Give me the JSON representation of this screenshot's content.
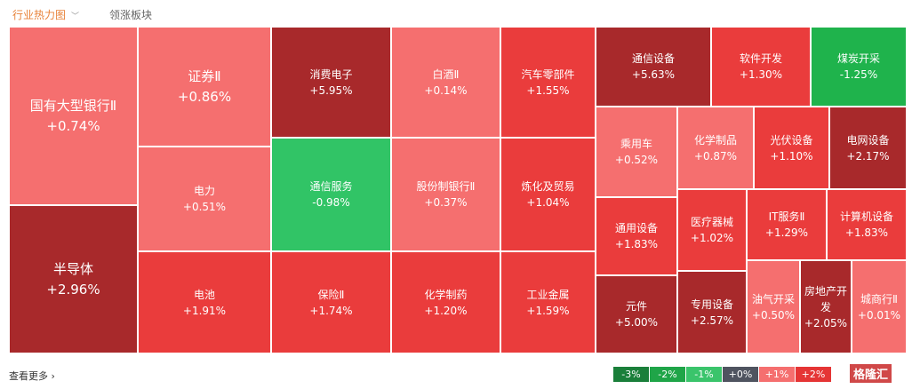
{
  "tabs": [
    {
      "label": "行业热力图",
      "active": true
    },
    {
      "label": "领涨板块",
      "active": false
    }
  ],
  "colors": {
    "light": "#f56f6f",
    "mid": "#ea3c3c",
    "dark": "#a8292b",
    "green": "#31c466",
    "green2": "#1fb34c"
  },
  "tiles": [
    {
      "name": "国有大型银行Ⅱ",
      "value": "+0.74%",
      "c": "light",
      "big": true
    },
    {
      "name": "半导体",
      "value": "+2.96%",
      "c": "dark",
      "big": true
    },
    {
      "name": "证券Ⅱ",
      "value": "+0.86%",
      "c": "light",
      "big": true
    },
    {
      "name": "电力",
      "value": "+0.51%",
      "c": "light"
    },
    {
      "name": "电池",
      "value": "+1.91%",
      "c": "mid"
    },
    {
      "name": "消费电子",
      "value": "+5.95%",
      "c": "dark"
    },
    {
      "name": "通信服务",
      "value": "-0.98%",
      "c": "green"
    },
    {
      "name": "保险Ⅱ",
      "value": "+1.74%",
      "c": "mid"
    },
    {
      "name": "白酒Ⅱ",
      "value": "+0.14%",
      "c": "light"
    },
    {
      "name": "股份制银行Ⅱ",
      "value": "+0.37%",
      "c": "light"
    },
    {
      "name": "化学制药",
      "value": "+1.20%",
      "c": "mid"
    },
    {
      "name": "汽车零部件",
      "value": "+1.55%",
      "c": "mid"
    },
    {
      "name": "炼化及贸易",
      "value": "+1.04%",
      "c": "mid"
    },
    {
      "name": "工业金属",
      "value": "+1.59%",
      "c": "mid"
    },
    {
      "name": "通信设备",
      "value": "+5.63%",
      "c": "dark"
    },
    {
      "name": "软件开发",
      "value": "+1.30%",
      "c": "mid"
    },
    {
      "name": "煤炭开采",
      "value": "-1.25%",
      "c": "green2"
    },
    {
      "name": "乘用车",
      "value": "+0.52%",
      "c": "light"
    },
    {
      "name": "化学制品",
      "value": "+0.87%",
      "c": "light"
    },
    {
      "name": "光伏设备",
      "value": "+1.10%",
      "c": "mid"
    },
    {
      "name": "电网设备",
      "value": "+2.17%",
      "c": "dark"
    },
    {
      "name": "通用设备",
      "value": "+1.83%",
      "c": "mid"
    },
    {
      "name": "元件",
      "value": "+5.00%",
      "c": "dark"
    },
    {
      "name": "医疗器械",
      "value": "+1.02%",
      "c": "mid"
    },
    {
      "name": "专用设备",
      "value": "+2.57%",
      "c": "dark"
    },
    {
      "name": "IT服务Ⅱ",
      "value": "+1.29%",
      "c": "mid"
    },
    {
      "name": "计算机设备",
      "value": "+1.83%",
      "c": "mid"
    },
    {
      "name": "油气开采",
      "value": "+0.50%",
      "c": "light"
    },
    {
      "name": "房地产开发",
      "value": "+2.05%",
      "c": "dark"
    },
    {
      "name": "城商行Ⅱ",
      "value": "+0.01%",
      "c": "light"
    }
  ],
  "more": "查看更多 ›",
  "legend": [
    {
      "label": "-3%",
      "color": "#1a7f3a"
    },
    {
      "label": "-2%",
      "color": "#1fa548"
    },
    {
      "label": "-1%",
      "color": "#3ac46b"
    },
    {
      "label": "+0%",
      "color": "#4f5460"
    },
    {
      "label": "+1%",
      "color": "#f56f6f"
    },
    {
      "label": "+2%",
      "color": "#e53535"
    }
  ],
  "logo": "格隆汇"
}
